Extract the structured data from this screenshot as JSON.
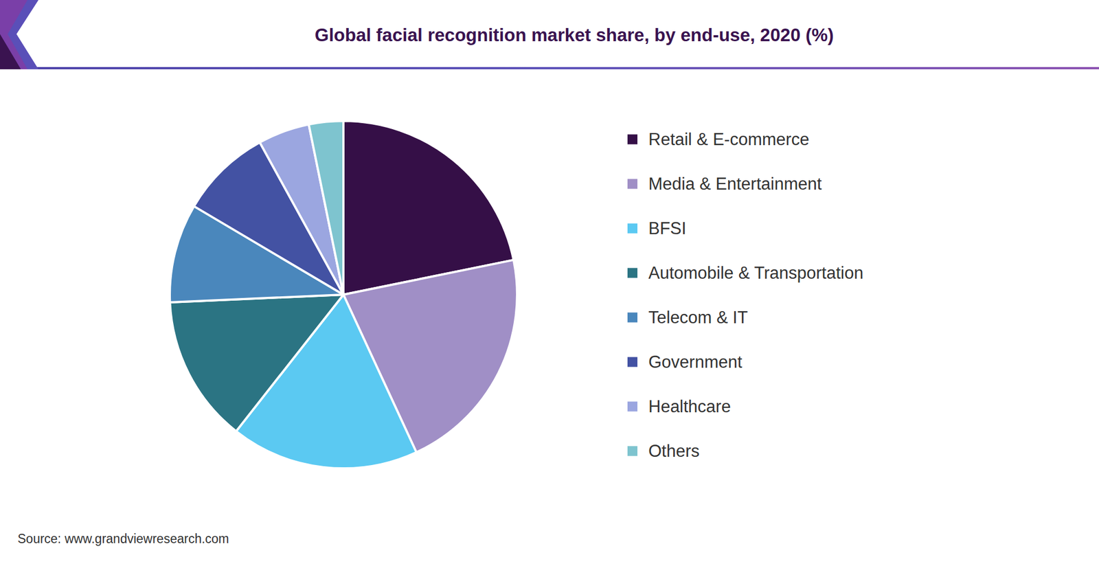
{
  "chart_data": {
    "type": "pie",
    "title": "Global facial recognition market share, by end-use, 2020 (%)",
    "source": "Source: www.grandviewresearch.com",
    "categories": [
      "Retail & E-commerce",
      "Media & Entertainment",
      "BFSI",
      "Automobile & Transportation",
      "Telecom & IT",
      "Government",
      "Healthcare",
      "Others"
    ],
    "values": [
      21.8,
      21.3,
      17.5,
      13.7,
      9.2,
      8.5,
      4.8,
      3.2
    ],
    "colors": [
      "#350f47",
      "#a08fc6",
      "#5bc9f2",
      "#2b7483",
      "#4a87bc",
      "#4352a3",
      "#9ba6e0",
      "#7ec4cf"
    ],
    "legend": "right",
    "data_labels": false
  }
}
